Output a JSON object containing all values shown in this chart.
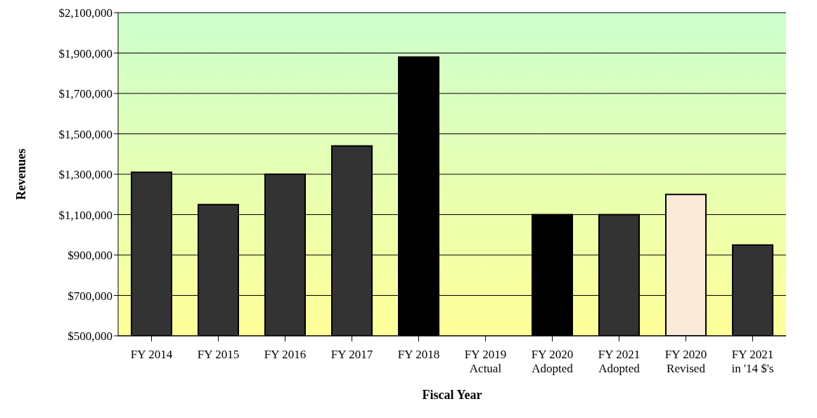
{
  "chart_data": {
    "type": "bar",
    "xlabel": "Fiscal Year",
    "ylabel": "Revenues",
    "categories": [
      "FY 2014",
      "FY 2015",
      "FY 2016",
      "FY 2017",
      "FY 2018",
      "FY 2019 Actual",
      "FY 2020 Adopted",
      "FY 2021 Adopted",
      "FY 2020 Revised",
      "FY 2021 in '14 $'s"
    ],
    "values": [
      1310000,
      1150000,
      1300000,
      1440000,
      1880000,
      500000,
      1100000,
      1100000,
      1200000,
      950000
    ],
    "colors": [
      "#333333",
      "#333333",
      "#333333",
      "#333333",
      "#000000",
      "#000000",
      "#000000",
      "#333333",
      "#fbe9da",
      "#333333"
    ],
    "ylim": [
      500000,
      2100000
    ],
    "yticks": [
      {
        "value": 500000,
        "label": "$500,000"
      },
      {
        "value": 700000,
        "label": "$700,000"
      },
      {
        "value": 900000,
        "label": "$900,000"
      },
      {
        "value": 1100000,
        "label": "$1,100,000"
      },
      {
        "value": 1300000,
        "label": "$1,300,000"
      },
      {
        "value": 1500000,
        "label": "$1,500,000"
      },
      {
        "value": 1700000,
        "label": "$1,700,000"
      },
      {
        "value": 1900000,
        "label": "$1,900,000"
      },
      {
        "value": 2100000,
        "label": "$2,100,000"
      }
    ],
    "grid": "y"
  }
}
